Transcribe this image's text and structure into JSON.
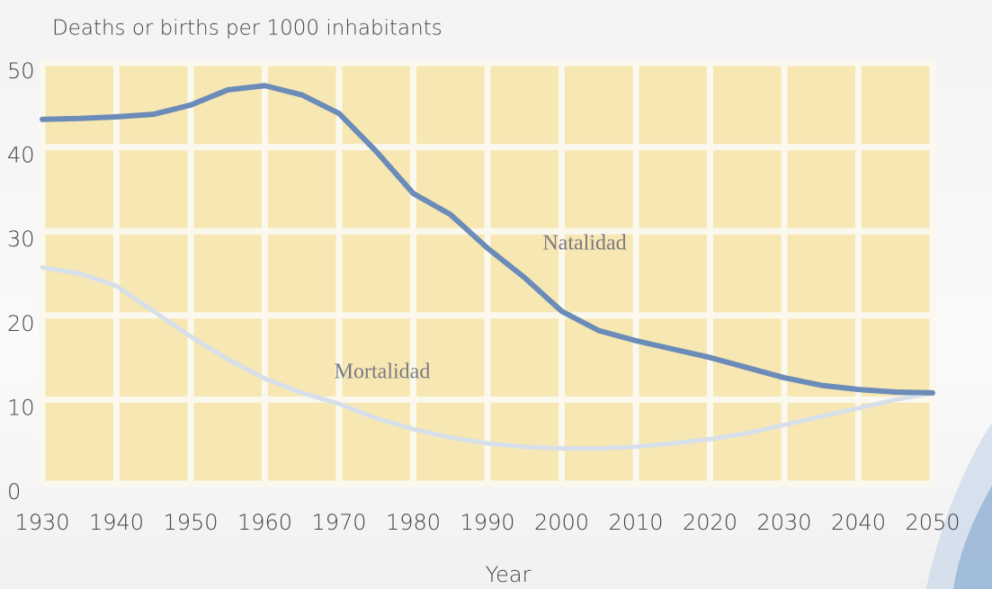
{
  "chart_data": {
    "type": "line",
    "title": "Deaths or births per 1000 inhabitants",
    "x_label": "Year",
    "x": [
      1930,
      1935,
      1940,
      1945,
      1950,
      1955,
      1960,
      1965,
      1970,
      1975,
      1980,
      1985,
      1990,
      1995,
      2000,
      2005,
      2010,
      2015,
      2020,
      2025,
      2030,
      2035,
      2040,
      2045,
      2050
    ],
    "series": [
      {
        "name": "Natalidad",
        "color": "#6b8bb9",
        "values": [
          43.3,
          43.4,
          43.6,
          43.9,
          45,
          46.8,
          47.3,
          46.2,
          44,
          39.5,
          34.5,
          32,
          28,
          24.5,
          20.5,
          18.2,
          17,
          16,
          15,
          13.8,
          12.6,
          11.7,
          11.2,
          10.9,
          10.8
        ]
      },
      {
        "name": "Mortalidad",
        "color": "#d6dfea",
        "values": [
          25.7,
          25,
          23.5,
          20.5,
          17.5,
          14.8,
          12.5,
          10.8,
          9.5,
          7.8,
          6.5,
          5.5,
          4.8,
          4.4,
          4.2,
          4.2,
          4.4,
          4.8,
          5.3,
          6,
          7,
          8,
          9,
          10,
          10.8
        ]
      }
    ],
    "xlim": [
      1930,
      2050
    ],
    "xticks": [
      1930,
      1940,
      1950,
      1960,
      1970,
      1980,
      1990,
      2000,
      2010,
      2020,
      2030,
      2040,
      2050
    ],
    "ylim": [
      0,
      50
    ],
    "yticks": [
      0,
      10,
      20,
      30,
      40,
      50
    ],
    "grid": true,
    "plot_color": "#f6e7b3"
  }
}
